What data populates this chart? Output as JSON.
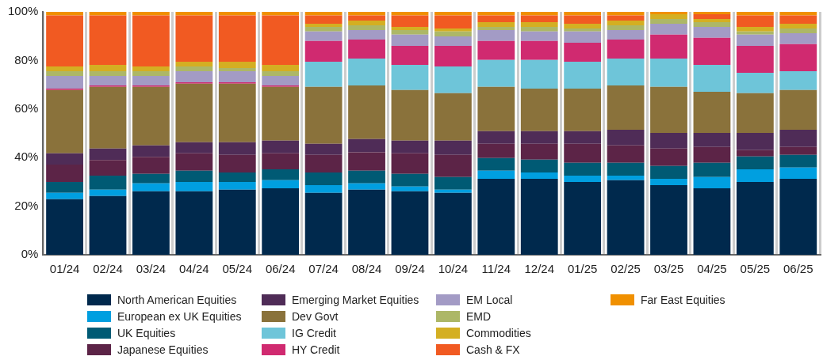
{
  "chart_data": {
    "type": "bar",
    "stacked": true,
    "grid": "x",
    "legend": "bottom",
    "categories": [
      "01/24",
      "02/24",
      "03/24",
      "04/24",
      "05/24",
      "06/24",
      "07/24",
      "08/24",
      "09/24",
      "10/24",
      "11/24",
      "12/24",
      "01/25",
      "02/25",
      "03/25",
      "04/25",
      "05/25",
      "06/25"
    ],
    "ylim": [
      0,
      100
    ],
    "yticks": [
      {
        "value": 0,
        "label": "0%"
      },
      {
        "value": 20,
        "label": "20%"
      },
      {
        "value": 40,
        "label": "40%"
      },
      {
        "value": 60,
        "label": "60%"
      },
      {
        "value": 80,
        "label": "80%"
      },
      {
        "value": 100,
        "label": "100%"
      }
    ],
    "series": [
      {
        "name": "North American Equities",
        "color": "#00294d",
        "values": [
          22.9,
          24.2,
          26.1,
          26.1,
          26.8,
          27.4,
          25.5,
          26.8,
          26.1,
          25.5,
          31.3,
          31.3,
          30.0,
          30.7,
          28.7,
          27.4,
          30.0,
          31.3
        ]
      },
      {
        "name": "European ex UK Equities",
        "color": "#009fe0",
        "values": [
          2.6,
          2.6,
          3.3,
          3.9,
          3.2,
          3.3,
          3.2,
          2.6,
          2.0,
          1.3,
          3.3,
          2.6,
          2.6,
          1.9,
          2.6,
          4.6,
          5.2,
          4.6
        ]
      },
      {
        "name": "UK Equities",
        "color": "#005a74",
        "values": [
          4.5,
          5.8,
          3.9,
          4.6,
          3.9,
          4.5,
          5.2,
          5.2,
          5.2,
          5.2,
          5.2,
          5.3,
          5.3,
          5.3,
          5.3,
          5.9,
          5.3,
          5.2
        ]
      },
      {
        "name": "Japanese Equities",
        "color": "#5c2447",
        "values": [
          7.1,
          6.4,
          7.0,
          7.2,
          7.2,
          6.6,
          7.2,
          7.6,
          8.5,
          9.1,
          5.9,
          6.5,
          7.8,
          7.1,
          7.1,
          6.5,
          2.6,
          3.3
        ]
      },
      {
        "name": "Emerging Market Equities",
        "color": "#4f2c57",
        "values": [
          4.7,
          4.7,
          4.7,
          4.5,
          5.2,
          5.2,
          4.6,
          5.4,
          5.2,
          5.9,
          5.2,
          5.2,
          5.2,
          6.5,
          6.5,
          5.8,
          7.1,
          7.1
        ]
      },
      {
        "name": "Dev Govt",
        "color": "#8a723b",
        "values": [
          26.0,
          25.4,
          24.1,
          24.1,
          24.1,
          22.1,
          23.4,
          22.1,
          20.8,
          19.5,
          18.2,
          17.5,
          17.5,
          18.2,
          18.9,
          16.9,
          16.3,
          16.3
        ]
      },
      {
        "name": "IG Credit",
        "color": "#6ec5d9",
        "values": [
          0,
          0,
          0,
          0,
          0,
          0,
          10.4,
          11.1,
          10.4,
          11.0,
          11.1,
          11.8,
          11.1,
          11.1,
          11.7,
          11.1,
          8.4,
          7.8
        ]
      },
      {
        "name": "HY Credit",
        "color": "#d02a70",
        "values": [
          0.6,
          0.6,
          0.6,
          0.6,
          0.6,
          0.6,
          8.5,
          7.8,
          7.8,
          8.5,
          7.8,
          7.8,
          7.8,
          7.8,
          9.8,
          11.1,
          11.1,
          11.1
        ]
      },
      {
        "name": "EM Local",
        "color": "#a39bc5",
        "values": [
          5.2,
          3.9,
          3.9,
          4.6,
          4.6,
          3.9,
          3.9,
          3.9,
          4.6,
          3.9,
          4.5,
          3.9,
          4.6,
          3.9,
          4.5,
          4.5,
          4.6,
          4.5
        ]
      },
      {
        "name": "EMD",
        "color": "#adb767",
        "values": [
          2.0,
          2.0,
          2.0,
          1.9,
          1.3,
          2.0,
          1.9,
          2.0,
          1.9,
          2.0,
          1.3,
          1.9,
          1.3,
          2.0,
          2.0,
          2.0,
          1.3,
          2.0
        ]
      },
      {
        "name": "Commodities",
        "color": "#d4af22",
        "values": [
          1.9,
          2.6,
          1.9,
          2.0,
          2.6,
          2.6,
          1.3,
          1.9,
          1.3,
          1.3,
          2.0,
          2.0,
          1.9,
          1.9,
          1.9,
          1.3,
          1.9,
          1.9
        ]
      },
      {
        "name": "Cash & FX",
        "color": "#f15a22",
        "values": [
          21.0,
          20.3,
          21.0,
          19.0,
          19.0,
          20.3,
          3.4,
          2.1,
          4.7,
          5.3,
          2.7,
          2.7,
          3.4,
          2.1,
          0,
          1.9,
          4.7,
          3.4
        ]
      },
      {
        "name": "Far East Equities",
        "color": "#f09000",
        "values": [
          1.5,
          1.5,
          1.5,
          1.5,
          1.5,
          1.5,
          1.5,
          1.5,
          1.5,
          1.5,
          1.5,
          1.5,
          1.5,
          1.5,
          1.0,
          1.0,
          1.5,
          1.5
        ]
      }
    ]
  }
}
